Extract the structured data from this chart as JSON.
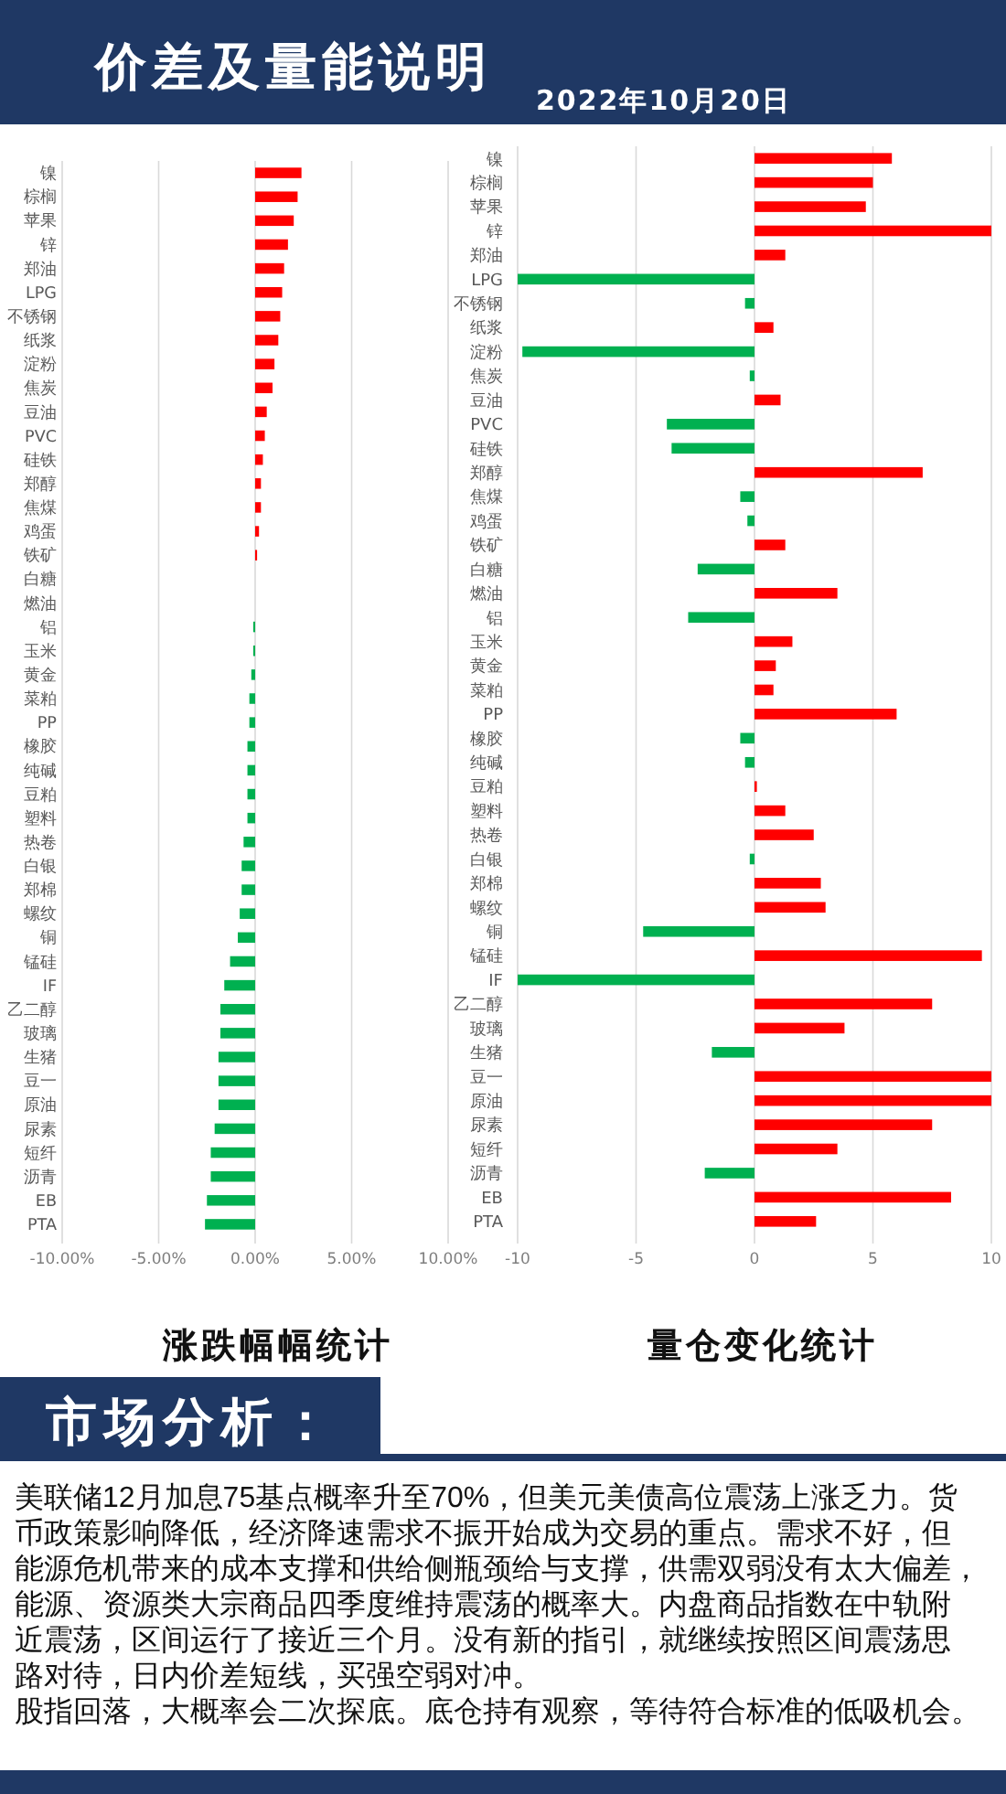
{
  "chart_data": [
    {
      "type": "other",
      "title": "价差及量能说明",
      "subtitle": "2022年10月20日"
    },
    {
      "type": "bar",
      "orientation": "horizontal",
      "title": "涨跌幅幅统计",
      "categories": [
        "镍",
        "棕榈",
        "苹果",
        "锌",
        "郑油",
        "LPG",
        "不锈钢",
        "纸浆",
        "淀粉",
        "焦炭",
        "豆油",
        "PVC",
        "硅铁",
        "郑醇",
        "焦煤",
        "鸡蛋",
        "铁矿",
        "白糖",
        "燃油",
        "铝",
        "玉米",
        "黄金",
        "菜粕",
        "PP",
        "橡胶",
        "纯碱",
        "豆粕",
        "塑料",
        "热卷",
        "白银",
        "郑棉",
        "螺纹",
        "铜",
        "锰硅",
        "IF",
        "乙二醇",
        "玻璃",
        "生猪",
        "豆一",
        "原油",
        "尿素",
        "短纤",
        "沥青",
        "EB",
        "PTA"
      ],
      "values": [
        2.4,
        2.2,
        2.0,
        1.7,
        1.5,
        1.4,
        1.3,
        1.2,
        1.0,
        0.9,
        0.6,
        0.5,
        0.4,
        0.3,
        0.3,
        0.2,
        0.1,
        0,
        0,
        -0.1,
        -0.1,
        -0.2,
        -0.3,
        -0.3,
        -0.4,
        -0.4,
        -0.4,
        -0.4,
        -0.6,
        -0.7,
        -0.7,
        -0.8,
        -0.9,
        -1.3,
        -1.6,
        -1.8,
        -1.8,
        -1.9,
        -1.9,
        -1.9,
        -2.1,
        -2.3,
        -2.3,
        -2.5,
        -2.6
      ],
      "colors": [
        "#ff0000",
        "#ff0000",
        "#ff0000",
        "#ff0000",
        "#ff0000",
        "#ff0000",
        "#ff0000",
        "#ff0000",
        "#ff0000",
        "#ff0000",
        "#ff0000",
        "#ff0000",
        "#ff0000",
        "#ff0000",
        "#ff0000",
        "#ff0000",
        "#ff0000",
        "#ff0000",
        "#ff0000",
        "#00b050",
        "#00b050",
        "#00b050",
        "#00b050",
        "#00b050",
        "#00b050",
        "#00b050",
        "#00b050",
        "#00b050",
        "#00b050",
        "#00b050",
        "#00b050",
        "#00b050",
        "#00b050",
        "#00b050",
        "#00b050",
        "#00b050",
        "#00b050",
        "#00b050",
        "#00b050",
        "#00b050",
        "#00b050",
        "#00b050",
        "#00b050",
        "#00b050",
        "#00b050"
      ],
      "xlim": [
        -10,
        10
      ],
      "xticks": [
        {
          "value": -10,
          "label": "-10.00%"
        },
        {
          "value": -5,
          "label": "-5.00%"
        },
        {
          "value": 0,
          "label": "0.00%"
        },
        {
          "value": 5,
          "label": "5.00%"
        },
        {
          "value": 10,
          "label": "10.00%"
        }
      ],
      "grid": "x"
    },
    {
      "type": "bar",
      "orientation": "horizontal",
      "title": "量仓变化统计",
      "categories": [
        "镍",
        "棕榈",
        "苹果",
        "锌",
        "郑油",
        "LPG",
        "不锈钢",
        "纸浆",
        "淀粉",
        "焦炭",
        "豆油",
        "PVC",
        "硅铁",
        "郑醇",
        "焦煤",
        "鸡蛋",
        "铁矿",
        "白糖",
        "燃油",
        "铝",
        "玉米",
        "黄金",
        "菜粕",
        "PP",
        "橡胶",
        "纯碱",
        "豆粕",
        "塑料",
        "热卷",
        "白银",
        "郑棉",
        "螺纹",
        "铜",
        "锰硅",
        "IF",
        "乙二醇",
        "玻璃",
        "生猪",
        "豆一",
        "原油",
        "尿素",
        "短纤",
        "沥青",
        "EB",
        "PTA"
      ],
      "values": [
        5.8,
        5.0,
        4.7,
        10,
        1.3,
        -10,
        -0.4,
        0.8,
        -9.8,
        -0.2,
        1.1,
        -3.7,
        -3.5,
        7.1,
        -0.6,
        -0.3,
        1.3,
        -2.4,
        3.5,
        -2.8,
        1.6,
        0.9,
        0.8,
        6.0,
        -0.6,
        -0.4,
        0.1,
        1.3,
        2.5,
        -0.2,
        2.8,
        3.0,
        -4.7,
        9.6,
        -10,
        7.5,
        3.8,
        -1.8,
        10,
        10,
        7.5,
        3.5,
        -2.1,
        8.3,
        2.6
      ],
      "colors": [
        "#ff0000",
        "#ff0000",
        "#ff0000",
        "#ff0000",
        "#ff0000",
        "#00b050",
        "#00b050",
        "#ff0000",
        "#00b050",
        "#00b050",
        "#ff0000",
        "#00b050",
        "#00b050",
        "#ff0000",
        "#00b050",
        "#00b050",
        "#ff0000",
        "#00b050",
        "#ff0000",
        "#00b050",
        "#ff0000",
        "#ff0000",
        "#ff0000",
        "#ff0000",
        "#00b050",
        "#00b050",
        "#ff0000",
        "#ff0000",
        "#ff0000",
        "#00b050",
        "#ff0000",
        "#ff0000",
        "#00b050",
        "#ff0000",
        "#00b050",
        "#ff0000",
        "#ff0000",
        "#00b050",
        "#ff0000",
        "#ff0000",
        "#ff0000",
        "#ff0000",
        "#00b050",
        "#ff0000",
        "#ff0000"
      ],
      "xlim": [
        -10,
        10
      ],
      "xticks": [
        -10,
        -5,
        0,
        5,
        10
      ],
      "grid": "x"
    },
    {
      "type": "other",
      "title": "市场分析：",
      "annotations": [
        "美联储12月加息75基点概率升至70%，但美元美债高位震荡上涨乏力。货币政策影响降低，经济降速需求不振开始成为交易的重点。需求不好，但能源危机带来的成本支撑和供给侧瓶颈给与支撑，供需双弱没有太大偏差，能源、资源类大宗商品四季度维持震荡的概率大。内盘商品指数在中轨附近震荡，区间运行了接近三个月。没有新的指引，就继续按照区间震荡思路对待，日内价差短线，买强空弱对冲。",
        "股指回落，大概率会二次探底。底仓持有观察，等待符合标准的低吸机会。"
      ]
    }
  ]
}
